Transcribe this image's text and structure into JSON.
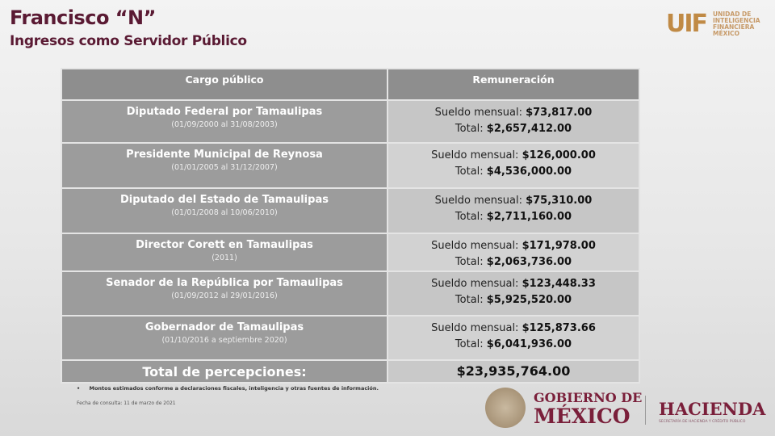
{
  "header": {
    "title": "Francisco “N”",
    "subtitle": "Ingresos como Servidor Público"
  },
  "logo_uif": {
    "mark": "UIF",
    "text": [
      "UNIDAD DE",
      "INTELIGENCIA",
      "FINANCIERA",
      "MÉXICO"
    ]
  },
  "table": {
    "headers": [
      "Cargo público",
      "Remuneración"
    ],
    "salary_label": "Sueldo mensual:",
    "total_label": "Total:",
    "rows": [
      {
        "cargo": "Diputado Federal por Tamaulipas",
        "periodo": "(01/09/2000 al 31/08/2003)",
        "sueldo": "$73,817.00",
        "total": "$2,657,412.00"
      },
      {
        "cargo": "Presidente Municipal de Reynosa",
        "periodo": "(01/01/2005 al 31/12/2007)",
        "sueldo": "$126,000.00",
        "total": "$4,536,000.00"
      },
      {
        "cargo": "Diputado del Estado de Tamaulipas",
        "periodo": "(01/01/2008 al 10/06/2010)",
        "sueldo": "$75,310.00",
        "total": "$2,711,160.00"
      },
      {
        "cargo": "Director Corett en Tamaulipas",
        "periodo": "(2011)",
        "sueldo": "$171,978.00",
        "total": "$2,063,736.00"
      },
      {
        "cargo": "Senador de la República por Tamaulipas",
        "periodo": "(01/09/2012 al 29/01/2016)",
        "sueldo": "$123,448.33",
        "total": "$5,925,520.00"
      },
      {
        "cargo": "Gobernador de Tamaulipas",
        "periodo": "(01/10/2016 a septiembre 2020)",
        "sueldo": "$125,873.66",
        "total": "$6,041,936.00"
      }
    ],
    "total_row": {
      "label": "Total de percepciones:",
      "value": "$23,935,764.00"
    }
  },
  "footer": {
    "note": "Montos estimados conforme a declaraciones fiscales, inteligencia y otras fuentes de información.",
    "date": "Fecha de consulta: 11 de marzo de 2021"
  },
  "logos": {
    "gobierno_line1": "GOBIERNO DE",
    "gobierno_line2": "MÉXICO",
    "hacienda": "HACIENDA",
    "hacienda_sub": "SECRETARÍA DE HACIENDA Y CRÉDITO PÚBLICO"
  }
}
